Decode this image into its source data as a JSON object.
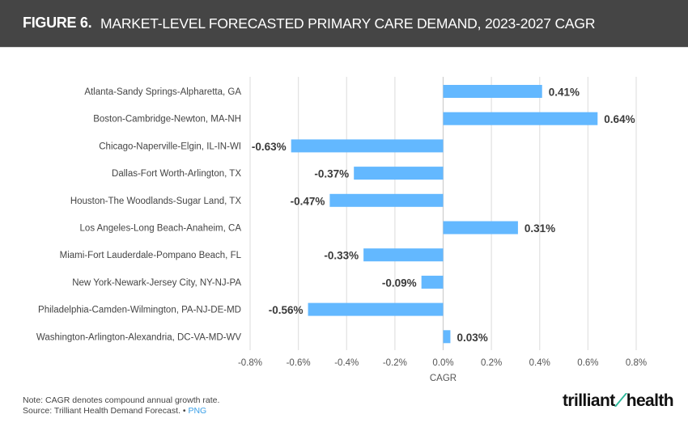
{
  "header": {
    "figure_label": "FIGURE 6.",
    "title": "MARKET-LEVEL FORECASTED PRIMARY CARE DEMAND, 2023-2027 CAGR"
  },
  "chart_data": {
    "type": "bar",
    "orientation": "horizontal",
    "title": "MARKET-LEVEL FORECASTED PRIMARY CARE DEMAND, 2023-2027 CAGR",
    "xlabel": "CAGR",
    "ylabel": "",
    "xlim": [
      -0.8,
      0.8
    ],
    "xticks": [
      -0.8,
      -0.6,
      -0.4,
      -0.2,
      0.0,
      0.2,
      0.4,
      0.6,
      0.8
    ],
    "xtick_labels": [
      "-0.8%",
      "-0.6%",
      "-0.4%",
      "-0.2%",
      "0.0%",
      "0.2%",
      "0.4%",
      "0.6%",
      "0.8%"
    ],
    "grid": "vertical",
    "bar_color": "#63b8ff",
    "categories": [
      "Atlanta-Sandy Springs-Alpharetta, GA",
      "Boston-Cambridge-Newton, MA-NH",
      "Chicago-Naperville-Elgin, IL-IN-WI",
      "Dallas-Fort Worth-Arlington, TX",
      "Houston-The Woodlands-Sugar Land, TX",
      "Los Angeles-Long Beach-Anaheim, CA",
      "Miami-Fort Lauderdale-Pompano Beach, FL",
      "New York-Newark-Jersey City, NY-NJ-PA",
      "Philadelphia-Camden-Wilmington, PA-NJ-DE-MD",
      "Washington-Arlington-Alexandria, DC-VA-MD-WV"
    ],
    "values": [
      0.41,
      0.64,
      -0.63,
      -0.37,
      -0.47,
      0.31,
      -0.33,
      -0.09,
      -0.56,
      0.03
    ],
    "data_labels": [
      "0.41%",
      "0.64%",
      "-0.63%",
      "-0.37%",
      "-0.47%",
      "0.31%",
      "-0.33%",
      "-0.09%",
      "-0.56%",
      "0.03%"
    ]
  },
  "footer": {
    "note": "Note: CAGR denotes compound annual growth rate.",
    "source": "Source: Trilliant Health Demand Forecast.",
    "separator": "•",
    "link_label": "PNG",
    "logo_left": "trilliant",
    "logo_right": "health"
  }
}
